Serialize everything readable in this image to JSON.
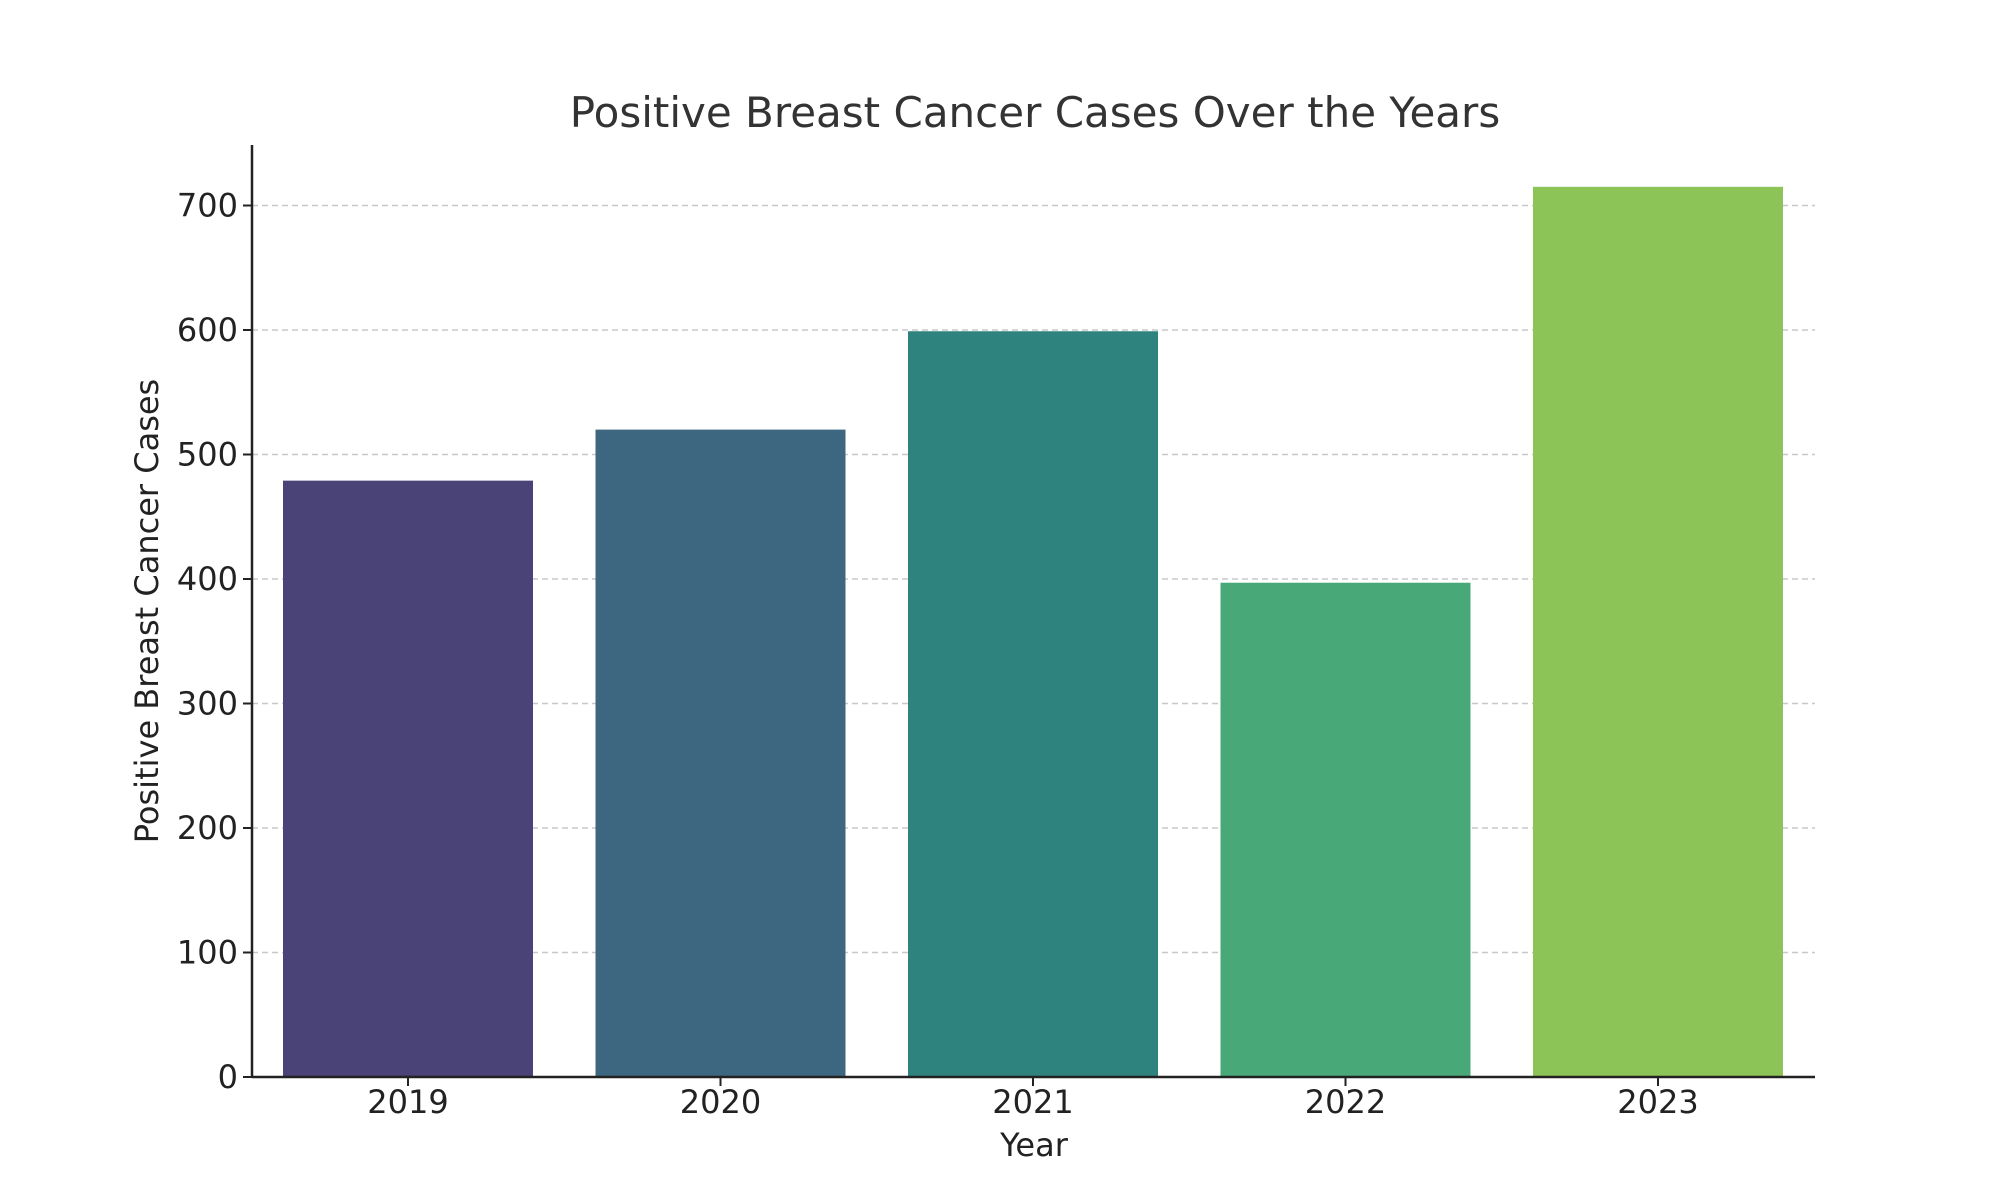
{
  "chart_data": {
    "type": "bar",
    "title": "Positive Breast Cancer Cases Over the Years",
    "xlabel": "Year",
    "ylabel": "Positive Breast Cancer Cases",
    "categories": [
      "2019",
      "2020",
      "2021",
      "2022",
      "2023"
    ],
    "values": [
      479,
      520,
      599,
      397,
      715
    ],
    "colors": [
      "#4a4377",
      "#3d6680",
      "#2e837e",
      "#48a878",
      "#8dc457"
    ],
    "ylim": [
      0,
      750
    ],
    "yticks": [
      0,
      100,
      200,
      300,
      400,
      500,
      600,
      700
    ],
    "grid": "horizontal dashed",
    "legend": "none"
  }
}
